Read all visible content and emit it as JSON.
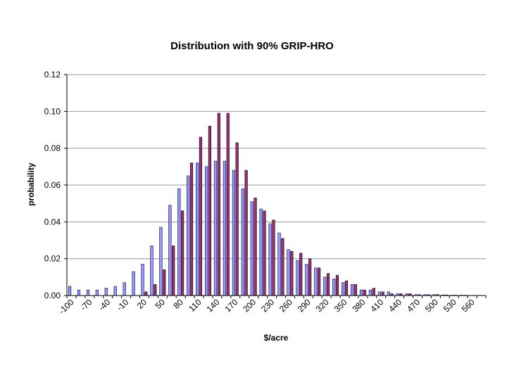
{
  "chart_data": {
    "type": "bar",
    "title": "Distribution with 90% GRIP-HRO",
    "xlabel": "$/acre",
    "ylabel": "probability",
    "ylim": [
      0,
      0.12
    ],
    "yticks": [
      "0.00",
      "0.02",
      "0.04",
      "0.06",
      "0.08",
      "0.10",
      "0.12"
    ],
    "grid": "horizontal",
    "legend": "none",
    "categories": [
      "-100",
      "-85",
      "-70",
      "-55",
      "-40",
      "-25",
      "-10",
      "5",
      "20",
      "35",
      "50",
      "65",
      "80",
      "95",
      "110",
      "125",
      "140",
      "155",
      "170",
      "185",
      "200",
      "215",
      "230",
      "245",
      "260",
      "275",
      "290",
      "305",
      "320",
      "335",
      "350",
      "365",
      "380",
      "395",
      "410",
      "425",
      "440",
      "455",
      "470",
      "485",
      "500",
      "515",
      "530",
      "545",
      "560",
      "575"
    ],
    "tick_labels": [
      "-100",
      "-70",
      "-40",
      "-10",
      "20",
      "50",
      "80",
      "110",
      "140",
      "170",
      "200",
      "230",
      "260",
      "290",
      "320",
      "350",
      "380",
      "410",
      "440",
      "470",
      "500",
      "530",
      "560"
    ],
    "series": [
      {
        "color": "#9999ff",
        "values": [
          0.005,
          0.003,
          0.003,
          0.003,
          0.004,
          0.005,
          0.007,
          0.013,
          0.017,
          0.027,
          0.037,
          0.049,
          0.058,
          0.065,
          0.072,
          0.07,
          0.073,
          0.073,
          0.068,
          0.058,
          0.051,
          0.047,
          0.039,
          0.034,
          0.025,
          0.019,
          0.017,
          0.015,
          0.01,
          0.009,
          0.007,
          0.006,
          0.003,
          0.003,
          0.002,
          0.002,
          0.001,
          0.001,
          0.0005,
          0.0005,
          0.0005,
          0.0003,
          0.0002,
          0.0002,
          0.0001,
          0.0001
        ]
      },
      {
        "color": "#993366",
        "values": [
          0,
          0,
          0,
          0,
          0,
          0,
          0,
          0,
          0.002,
          0.006,
          0.014,
          0.027,
          0.046,
          0.072,
          0.086,
          0.092,
          0.099,
          0.099,
          0.083,
          0.068,
          0.053,
          0.046,
          0.041,
          0.031,
          0.024,
          0.023,
          0.02,
          0.015,
          0.012,
          0.011,
          0.008,
          0.006,
          0.003,
          0.004,
          0.002,
          0.001,
          0.001,
          0.001,
          0.0005,
          0.0005,
          0.0005,
          0.0003,
          0.0002,
          0.0002,
          0.0001,
          0.0001
        ]
      }
    ]
  }
}
